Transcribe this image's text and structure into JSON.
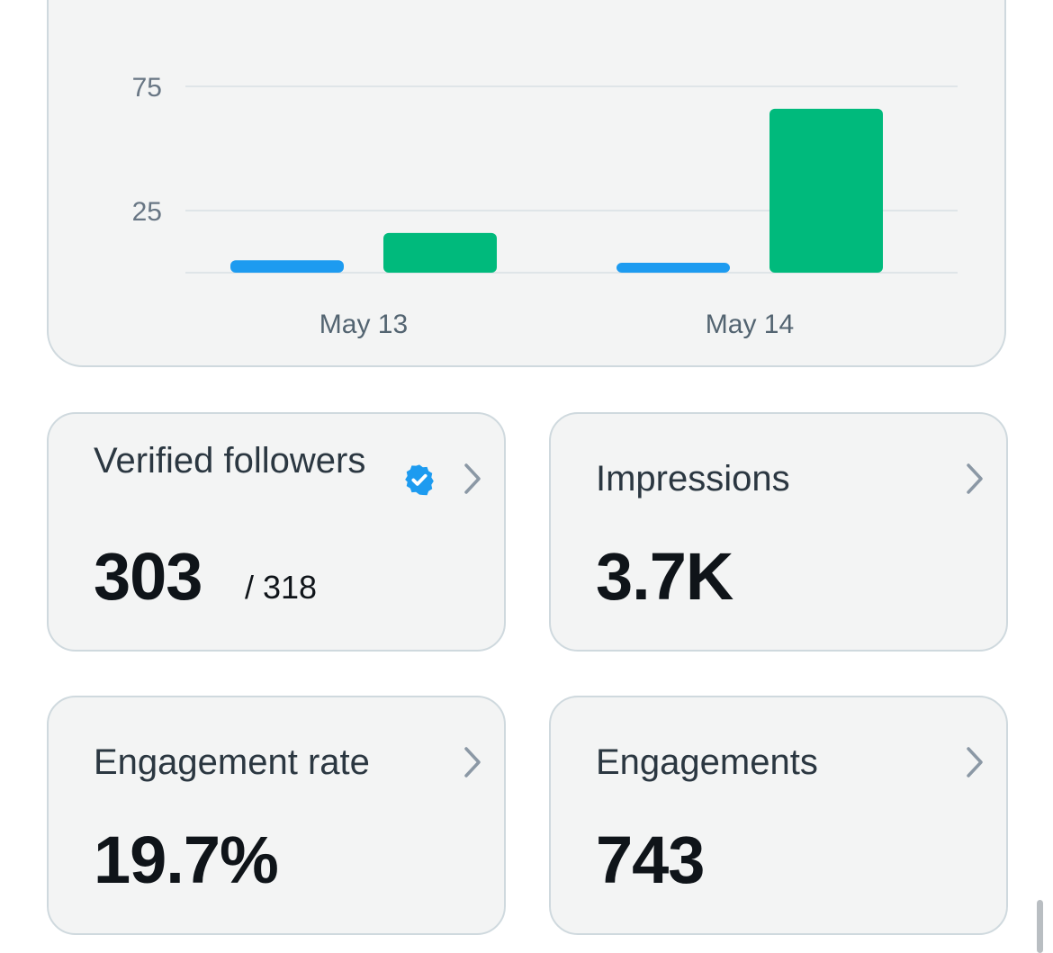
{
  "chart_data": {
    "type": "bar",
    "categories": [
      "May 13",
      "May 14"
    ],
    "series": [
      {
        "values": [
          5,
          4
        ],
        "color": "#1d9bf0"
      },
      {
        "values": [
          16,
          66
        ],
        "color": "#00ba7c"
      }
    ],
    "y_ticks": [
      "25",
      "75"
    ],
    "ylim": [
      0,
      100
    ],
    "grid": true
  },
  "stats": {
    "verified_followers": {
      "title": "Verified followers",
      "value": "303",
      "sub": "/ 318"
    },
    "impressions": {
      "title": "Impressions",
      "value": "3.7K"
    },
    "engagement_rate": {
      "title": "Engagement rate",
      "value": "19.7%"
    },
    "engagements": {
      "title": "Engagements",
      "value": "743"
    }
  },
  "colors": {
    "verified_badge": "#1d9bf0",
    "chevron": "#8b98a5"
  },
  "icons": {
    "badge": "verified-badge-icon",
    "chevron": "chevron-right-icon"
  }
}
